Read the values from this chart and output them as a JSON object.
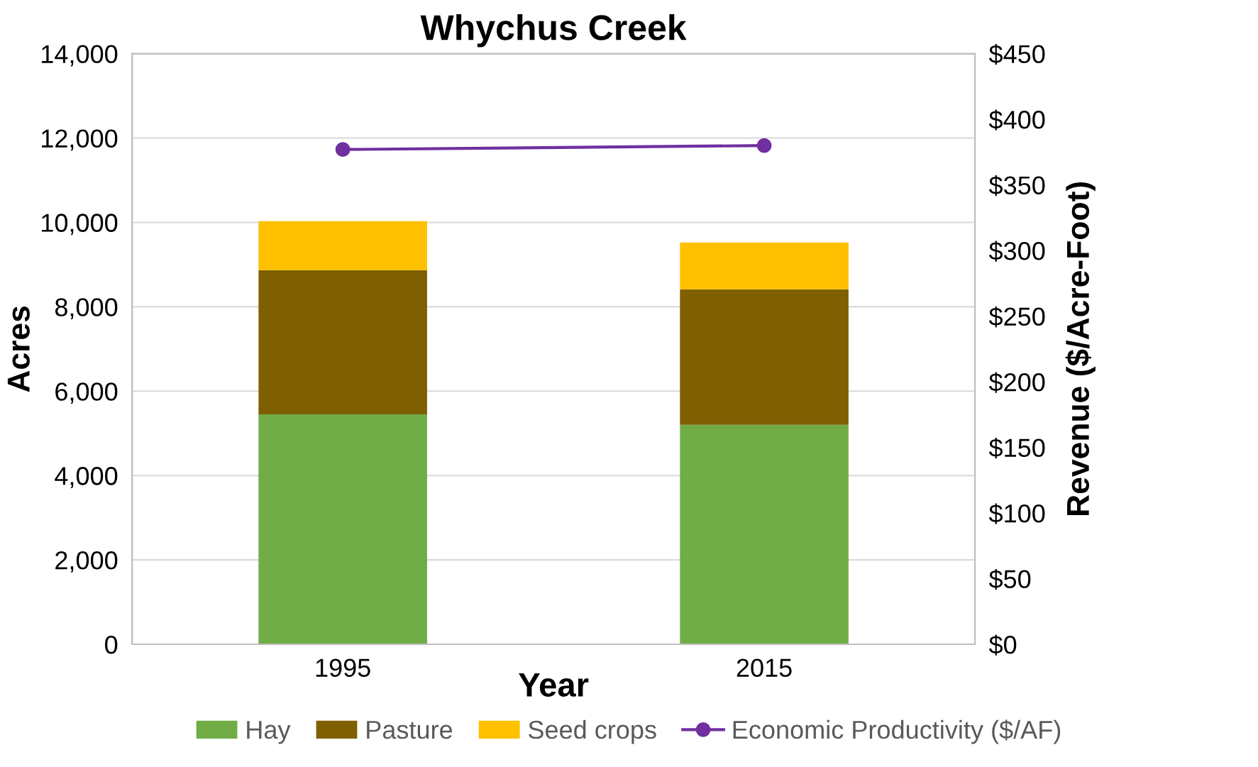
{
  "chart_data": {
    "type": "bar",
    "title": "Whychus Creek",
    "xlabel": "Year",
    "ylabel": "Acres",
    "y2label": "Revenue ($/Acre-Foot)",
    "categories": [
      "1995",
      "2015"
    ],
    "stacked": true,
    "series": [
      {
        "name": "Hay",
        "color": "#70ad47",
        "values": [
          5450,
          5200
        ]
      },
      {
        "name": "Pasture",
        "color": "#7f6000",
        "values": [
          3420,
          3215
        ]
      },
      {
        "name": "Seed crops",
        "color": "#ffc000",
        "values": [
          1160,
          1110
        ]
      },
      {
        "name": "Economic Productivity ($/AF)",
        "type": "line",
        "axis": "y2",
        "color": "#7030a0",
        "marker": "circle",
        "values": [
          377,
          380
        ]
      }
    ],
    "ylim": [
      0,
      14000
    ],
    "yticks": [
      {
        "value": 0,
        "label": "0"
      },
      {
        "value": 2000,
        "label": "2,000"
      },
      {
        "value": 4000,
        "label": "4,000"
      },
      {
        "value": 6000,
        "label": "6,000"
      },
      {
        "value": 8000,
        "label": "8,000"
      },
      {
        "value": 10000,
        "label": "10,000"
      },
      {
        "value": 12000,
        "label": "12,000"
      },
      {
        "value": 14000,
        "label": "14,000"
      }
    ],
    "y2lim": [
      0,
      450
    ],
    "y2ticks": [
      {
        "value": 0,
        "label": "$0"
      },
      {
        "value": 50,
        "label": "$50"
      },
      {
        "value": 100,
        "label": "$100"
      },
      {
        "value": 150,
        "label": "$150"
      },
      {
        "value": 200,
        "label": "$200"
      },
      {
        "value": 250,
        "label": "$250"
      },
      {
        "value": 300,
        "label": "$300"
      },
      {
        "value": 350,
        "label": "$350"
      },
      {
        "value": 400,
        "label": "$400"
      },
      {
        "value": 450,
        "label": "$450"
      }
    ],
    "grid": "y",
    "legend": "bottom"
  }
}
